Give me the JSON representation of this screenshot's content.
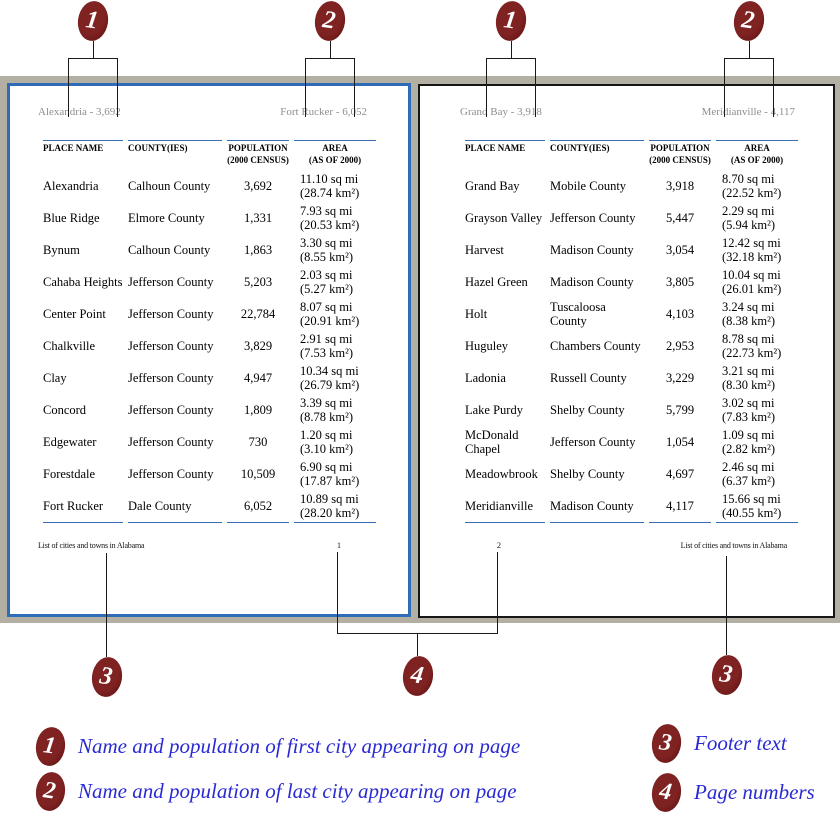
{
  "callouts": {
    "first_city": "1",
    "last_city": "2",
    "footer": "3",
    "page_numbers": "4"
  },
  "colors": {
    "desk_gray": "#b3afa2",
    "selected_page_border_blue": "#2e6cb8",
    "page_border_black": "#161616",
    "table_rule_blue": "#3a6cb4",
    "header_footer_gray": "#8f8e8e",
    "badge_maroon": "#6d1717",
    "legend_blue": "#2a2ad4"
  },
  "pages": [
    {
      "header_left": "Alexandria - 3,692",
      "header_right": "Fort Rucker - 6,052",
      "page_number": "1",
      "footer_text": "List of cities and towns in Alabama",
      "columns": [
        "PLACE NAME",
        "COUNTY(IES)",
        "POPULATION\n(2000 CENSUS)",
        "AREA\n(AS OF 2000)"
      ],
      "rows": [
        {
          "place": "Alexandria",
          "county": "Calhoun County",
          "population": "3,692",
          "area_mi": "11.10 sq mi",
          "area_km": "(28.74 km²)"
        },
        {
          "place": "Blue Ridge",
          "county": "Elmore County",
          "population": "1,331",
          "area_mi": "7.93 sq mi",
          "area_km": "(20.53 km²)"
        },
        {
          "place": "Bynum",
          "county": "Calhoun County",
          "population": "1,863",
          "area_mi": "3.30 sq mi",
          "area_km": "(8.55 km²)"
        },
        {
          "place": "Cahaba Heights",
          "county": "Jefferson County",
          "population": "5,203",
          "area_mi": "2.03 sq mi",
          "area_km": "(5.27 km²)"
        },
        {
          "place": "Center Point",
          "county": "Jefferson County",
          "population": "22,784",
          "area_mi": "8.07 sq mi",
          "area_km": "(20.91 km²)"
        },
        {
          "place": "Chalkville",
          "county": "Jefferson County",
          "population": "3,829",
          "area_mi": "2.91 sq mi",
          "area_km": "(7.53 km²)"
        },
        {
          "place": "Clay",
          "county": "Jefferson County",
          "population": "4,947",
          "area_mi": "10.34 sq mi",
          "area_km": "(26.79 km²)"
        },
        {
          "place": "Concord",
          "county": "Jefferson County",
          "population": "1,809",
          "area_mi": "3.39 sq mi",
          "area_km": "(8.78 km²)"
        },
        {
          "place": "Edgewater",
          "county": "Jefferson County",
          "population": "730",
          "area_mi": "1.20 sq mi",
          "area_km": "(3.10 km²)"
        },
        {
          "place": "Forestdale",
          "county": "Jefferson County",
          "population": "10,509",
          "area_mi": "6.90 sq mi",
          "area_km": "(17.87 km²)"
        },
        {
          "place": "Fort Rucker",
          "county": "Dale County",
          "population": "6,052",
          "area_mi": "10.89 sq mi",
          "area_km": "(28.20 km²)"
        }
      ]
    },
    {
      "header_left": "Grand Bay - 3,918",
      "header_right": "Meridianville - 4,117",
      "page_number": "2",
      "footer_text": "List of cities and towns in Alabama",
      "columns": [
        "PLACE NAME",
        "COUNTY(IES)",
        "POPULATION\n(2000 CENSUS)",
        "AREA\n(AS OF 2000)"
      ],
      "rows": [
        {
          "place": "Grand Bay",
          "county": "Mobile County",
          "population": "3,918",
          "area_mi": "8.70 sq mi",
          "area_km": "(22.52 km²)"
        },
        {
          "place": "Grayson Valley",
          "county": "Jefferson County",
          "population": "5,447",
          "area_mi": "2.29 sq mi",
          "area_km": "(5.94 km²)"
        },
        {
          "place": "Harvest",
          "county": "Madison County",
          "population": "3,054",
          "area_mi": "12.42 sq mi",
          "area_km": "(32.18 km²)"
        },
        {
          "place": "Hazel Green",
          "county": "Madison County",
          "population": "3,805",
          "area_mi": "10.04 sq mi",
          "area_km": "(26.01 km²)"
        },
        {
          "place": "Holt",
          "county": "Tuscaloosa County",
          "population": "4,103",
          "area_mi": "3.24 sq mi",
          "area_km": "(8.38 km²)"
        },
        {
          "place": "Huguley",
          "county": "Chambers County",
          "population": "2,953",
          "area_mi": "8.78 sq mi",
          "area_km": "(22.73 km²)"
        },
        {
          "place": "Ladonia",
          "county": "Russell County",
          "population": "3,229",
          "area_mi": "3.21 sq mi",
          "area_km": "(8.30 km²)"
        },
        {
          "place": "Lake Purdy",
          "county": "Shelby County",
          "population": "5,799",
          "area_mi": "3.02 sq mi",
          "area_km": "(7.83 km²)"
        },
        {
          "place": "McDonald Chapel",
          "county": "Jefferson County",
          "population": "1,054",
          "area_mi": "1.09 sq mi",
          "area_km": "(2.82 km²)"
        },
        {
          "place": "Meadowbrook",
          "county": "Shelby County",
          "population": "4,697",
          "area_mi": "2.46 sq mi",
          "area_km": "(6.37 km²)"
        },
        {
          "place": "Meridianville",
          "county": "Madison County",
          "population": "4,117",
          "area_mi": "15.66 sq mi",
          "area_km": "(40.55 km²)"
        }
      ]
    }
  ],
  "legend": {
    "items": [
      {
        "num": "1",
        "text": "Name and population of first city appearing on page"
      },
      {
        "num": "2",
        "text": "Name and population of last city appearing on page"
      },
      {
        "num": "3",
        "text": "Footer text"
      },
      {
        "num": "4",
        "text": "Page numbers"
      }
    ]
  }
}
